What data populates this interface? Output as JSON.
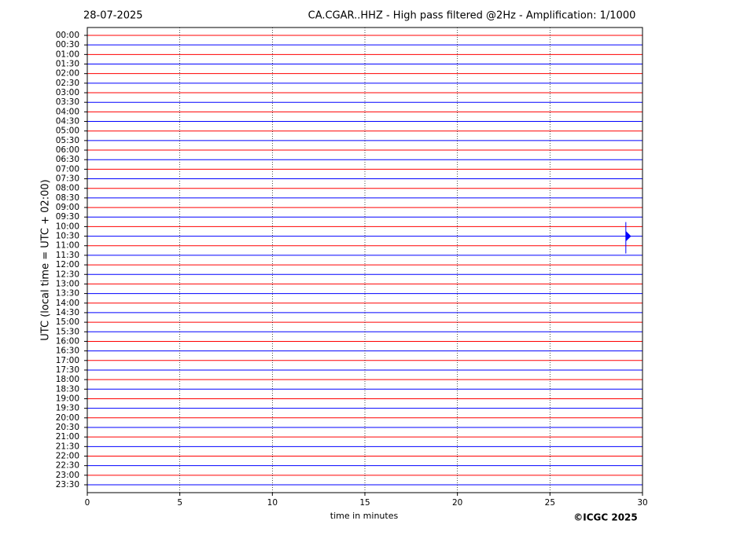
{
  "chart_data": {
    "type": "helicorder",
    "title": "CA.CGAR..HHZ - High pass filtered @2Hz - Amplification: 1/1000",
    "date": "28-07-2025",
    "y_label": "UTC (local time = UTC + 02:00)",
    "x_label": "time in minutes",
    "copyright": "©ICGC 2025",
    "categories": [
      "00:00",
      "00:30",
      "01:00",
      "01:30",
      "02:00",
      "02:30",
      "03:00",
      "03:30",
      "04:00",
      "04:30",
      "05:00",
      "05:30",
      "06:00",
      "06:30",
      "07:00",
      "07:30",
      "08:00",
      "08:30",
      "09:00",
      "09:30",
      "10:00",
      "10:30",
      "11:00",
      "11:30",
      "12:00",
      "12:30",
      "13:00",
      "13:30",
      "14:00",
      "14:30",
      "15:00",
      "15:30",
      "16:00",
      "16:30",
      "17:00",
      "17:30",
      "18:00",
      "18:30",
      "19:00",
      "19:30",
      "20:00",
      "20:30",
      "21:00",
      "21:30",
      "22:00",
      "22:30",
      "23:00",
      "23:30"
    ],
    "trace_colors": [
      "#ff0000",
      "#0000ff"
    ],
    "xlim": [
      0,
      30
    ],
    "xticks": [
      0,
      5,
      10,
      15,
      20,
      25,
      30
    ],
    "grid": true,
    "events": [
      {
        "time": "10:30",
        "x": 29.1
      }
    ]
  }
}
